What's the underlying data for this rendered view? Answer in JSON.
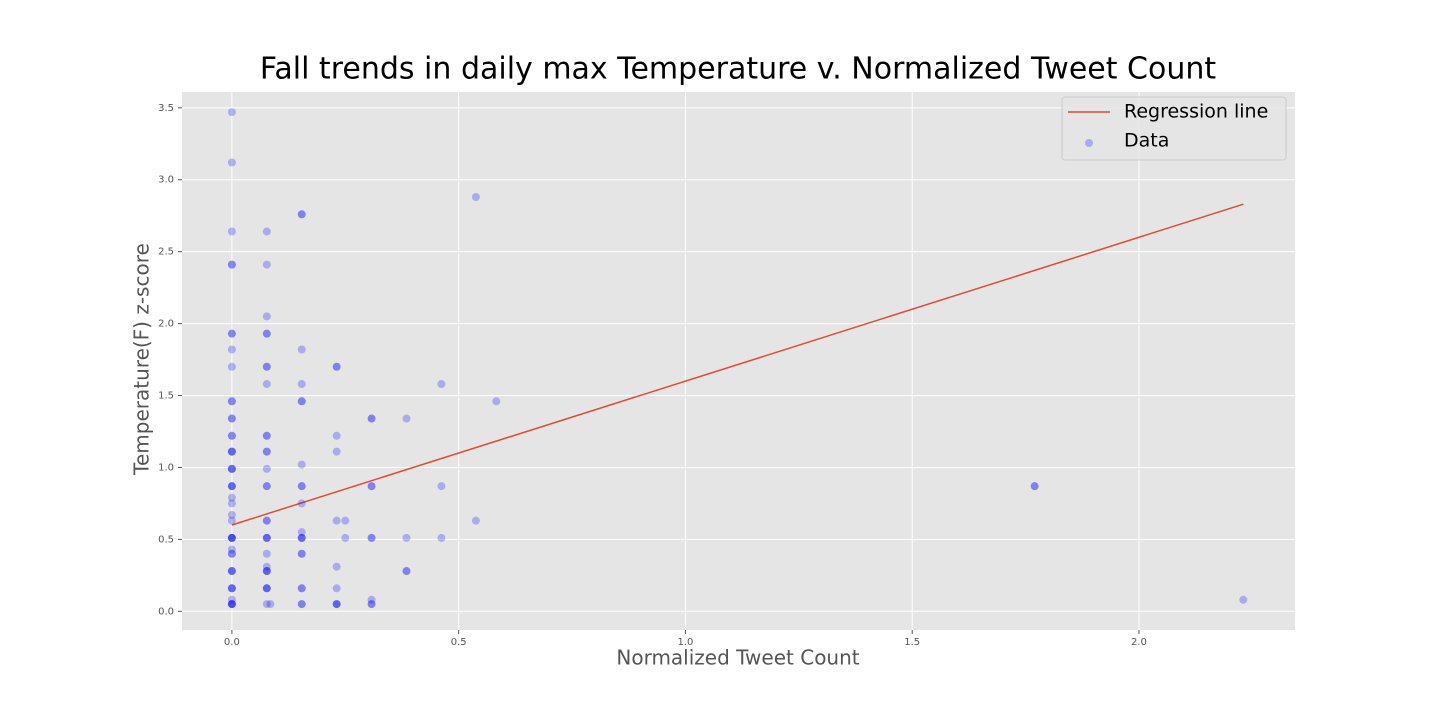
{
  "chart_data": {
    "type": "scatter",
    "title": "Fall trends in daily max Temperature v. Normalized Tweet Count",
    "x_label": "Normalized Tweet Count",
    "y_label": "Temperature(F) z-score",
    "xlim": [
      -0.11,
      2.344
    ],
    "ylim": [
      -0.13,
      3.61
    ],
    "xticks": [
      {
        "value": 0,
        "label": "0.0"
      },
      0.5,
      {
        "value": 1,
        "label": "1.0"
      },
      1.5,
      {
        "value": 2,
        "label": "2.0"
      }
    ],
    "yticks": [
      {
        "value": 0,
        "label": "0.0"
      },
      0.5,
      {
        "value": 1,
        "label": "1.0"
      },
      1.5,
      {
        "value": 2,
        "label": "2.0"
      },
      2.5,
      {
        "value": 3,
        "label": "3.0"
      },
      3.5
    ],
    "grid": true,
    "legend": "upper right",
    "series": [
      {
        "name": "Regression line",
        "type": "line",
        "color": "#e24a33",
        "x": [
          0,
          2.23
        ],
        "values": [
          0.6,
          2.83
        ]
      },
      {
        "name": "Data",
        "type": "scatter",
        "color": "#0000ff",
        "x": [
          0,
          0,
          0,
          0,
          0,
          0,
          0,
          0,
          0,
          0,
          0,
          0,
          0,
          0,
          0,
          0,
          0,
          0,
          0,
          0,
          0,
          0,
          0,
          0,
          0,
          0,
          0,
          0,
          0,
          0,
          0,
          0,
          0,
          0,
          0,
          0,
          0,
          0,
          0,
          0,
          0,
          0,
          0,
          0,
          0,
          0,
          0.077,
          0.077,
          0.077,
          0.077,
          0.077,
          0.077,
          0.077,
          0.077,
          0.077,
          0.077,
          0.077,
          0.077,
          0.077,
          0.077,
          0.077,
          0.077,
          0.077,
          0.077,
          0.077,
          0.077,
          0.077,
          0.077,
          0.077,
          0.077,
          0.077,
          0.077,
          0.077,
          0.077,
          0.077,
          0.085,
          0.154,
          0.154,
          0.154,
          0.154,
          0.154,
          0.154,
          0.154,
          0.154,
          0.154,
          0.154,
          0.154,
          0.154,
          0.154,
          0.154,
          0.154,
          0.154,
          0.154,
          0.154,
          0.154,
          0.154,
          0.231,
          0.231,
          0.231,
          0.231,
          0.231,
          0.231,
          0.231,
          0.231,
          0.231,
          0.231,
          0.25,
          0.25,
          0.308,
          0.308,
          0.308,
          0.308,
          0.308,
          0.308,
          0.308,
          0.308,
          0.308,
          0.385,
          0.385,
          0.385,
          0.385,
          0.462,
          0.462,
          0.462,
          0.538,
          0.538,
          0.583,
          1.77,
          1.77,
          2.23
        ],
        "values": [
          3.47,
          3.12,
          2.64,
          2.41,
          2.41,
          1.93,
          1.93,
          1.82,
          1.7,
          1.46,
          1.46,
          1.34,
          1.34,
          1.22,
          1.22,
          1.11,
          1.11,
          1.11,
          0.99,
          0.99,
          0.99,
          0.87,
          0.87,
          0.87,
          0.79,
          0.75,
          0.67,
          0.63,
          0.51,
          0.51,
          0.51,
          0.51,
          0.43,
          0.4,
          0.4,
          0.28,
          0.28,
          0.28,
          0.16,
          0.16,
          0.16,
          0.08,
          0.05,
          0.05,
          0.05,
          0.05,
          2.64,
          2.41,
          2.05,
          1.93,
          1.93,
          1.7,
          1.7,
          1.58,
          1.22,
          1.22,
          1.11,
          1.11,
          0.99,
          0.87,
          0.87,
          0.63,
          0.63,
          0.51,
          0.51,
          0.51,
          0.4,
          0.31,
          0.28,
          0.28,
          0.28,
          0.16,
          0.16,
          0.16,
          0.05,
          0.05,
          2.76,
          2.76,
          1.82,
          1.58,
          1.46,
          1.46,
          1.02,
          0.87,
          0.87,
          0.75,
          0.55,
          0.51,
          0.51,
          0.51,
          0.4,
          0.4,
          0.16,
          0.16,
          0.05,
          0.05,
          1.7,
          1.7,
          1.22,
          1.11,
          0.63,
          0.31,
          0.16,
          0.05,
          0.05,
          0.05,
          0.63,
          0.51,
          1.34,
          1.34,
          0.87,
          0.87,
          0.51,
          0.51,
          0.08,
          0.05,
          0.05,
          1.34,
          0.51,
          0.28,
          0.28,
          1.58,
          0.87,
          0.51,
          2.88,
          0.63,
          1.46,
          0.87,
          0.87,
          0.08
        ]
      }
    ]
  }
}
